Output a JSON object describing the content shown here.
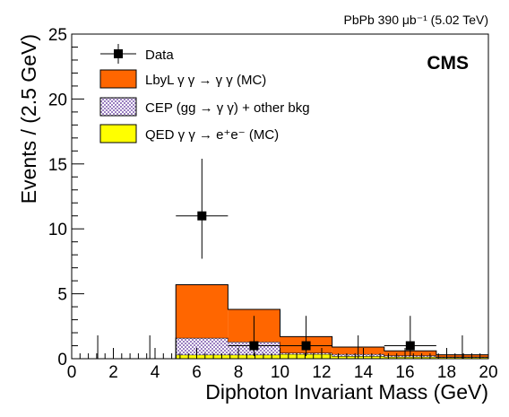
{
  "chart_data": {
    "type": "histogram",
    "header": "PbPb 390 μb⁻¹ (5.02 TeV)",
    "experiment": "CMS",
    "xlabel": "Diphoton Invariant Mass (GeV)",
    "ylabel": "Events / (2.5 GeV)",
    "xlim": [
      0,
      20
    ],
    "ylim": [
      0,
      25
    ],
    "x_ticks": [
      0,
      2,
      4,
      6,
      8,
      10,
      12,
      14,
      16,
      18,
      20
    ],
    "y_ticks": [
      0,
      5,
      10,
      15,
      20,
      25
    ],
    "bin_edges": [
      5,
      7.5,
      10,
      12.5,
      15,
      17.5,
      20
    ],
    "stack": [
      {
        "name": "QED γ γ → e⁺e⁻ (MC)",
        "color": "#ffff00",
        "values": [
          0.3,
          0.3,
          0.35,
          0.2,
          0.15,
          0.1
        ]
      },
      {
        "name": "CEP (gg → γ γ) + other bkg",
        "color": "#c9b8dc",
        "values": [
          1.3,
          1.0,
          0.1,
          0.15,
          0.1,
          0.05
        ]
      },
      {
        "name": "LbyL γ γ → γ γ (MC)",
        "color": "#ff6600",
        "values": [
          4.1,
          2.5,
          1.25,
          0.55,
          0.35,
          0.15
        ]
      }
    ],
    "data": {
      "name": "Data",
      "points": [
        {
          "x": 1.25,
          "y": 0,
          "yerr_low": 0,
          "yerr_high": 1.8
        },
        {
          "x": 3.75,
          "y": 0,
          "yerr_low": 0,
          "yerr_high": 1.8
        },
        {
          "x": 6.25,
          "y": 11,
          "yerr_low": 3.3,
          "yerr_high": 4.4
        },
        {
          "x": 8.75,
          "y": 1,
          "yerr_low": 0.8,
          "yerr_high": 2.3
        },
        {
          "x": 11.25,
          "y": 1,
          "yerr_low": 0.8,
          "yerr_high": 2.3
        },
        {
          "x": 13.75,
          "y": 0,
          "yerr_low": 0,
          "yerr_high": 1.8
        },
        {
          "x": 16.25,
          "y": 1,
          "yerr_low": 0.8,
          "yerr_high": 2.3
        },
        {
          "x": 18.75,
          "y": 0,
          "yerr_low": 0,
          "yerr_high": 1.8
        }
      ]
    },
    "legend": {
      "placement": "top-left",
      "entries": [
        "Data",
        "LbyL γ γ → γ γ (MC)",
        "CEP (gg → γ γ) + other bkg",
        "QED γ γ → e⁺e⁻ (MC)"
      ]
    },
    "grid": false
  }
}
